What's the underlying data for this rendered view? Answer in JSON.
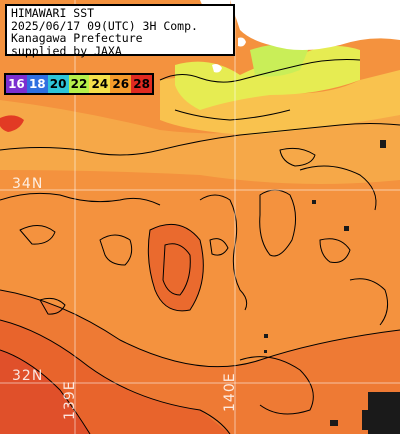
{
  "title": {
    "line1": "HIMAWARI SST",
    "line2": "2025/06/17 09(UTC) 3H Comp.",
    "line3": "Kanagawa Prefecture",
    "line4": "supplied by JAXA"
  },
  "legend": {
    "labels": [
      "16",
      "18",
      "20",
      "22",
      "24",
      "26",
      "28"
    ],
    "colors": [
      "#7b2fd0",
      "#2f6fe0",
      "#2ec4d8",
      "#b6f04a",
      "#f5e04a",
      "#f59a2a",
      "#e02a20"
    ]
  },
  "grid_labels": {
    "lat_34": "34N",
    "lat_32": "32N",
    "lon_139": "139E",
    "lon_140": "140E"
  },
  "colors": {
    "sea_warm": "#f58a3a",
    "sea_cool": "#f8b84a",
    "sea_hot": "#e85a28",
    "land": "#ffffff",
    "cloud": "#1a1a1a"
  }
}
